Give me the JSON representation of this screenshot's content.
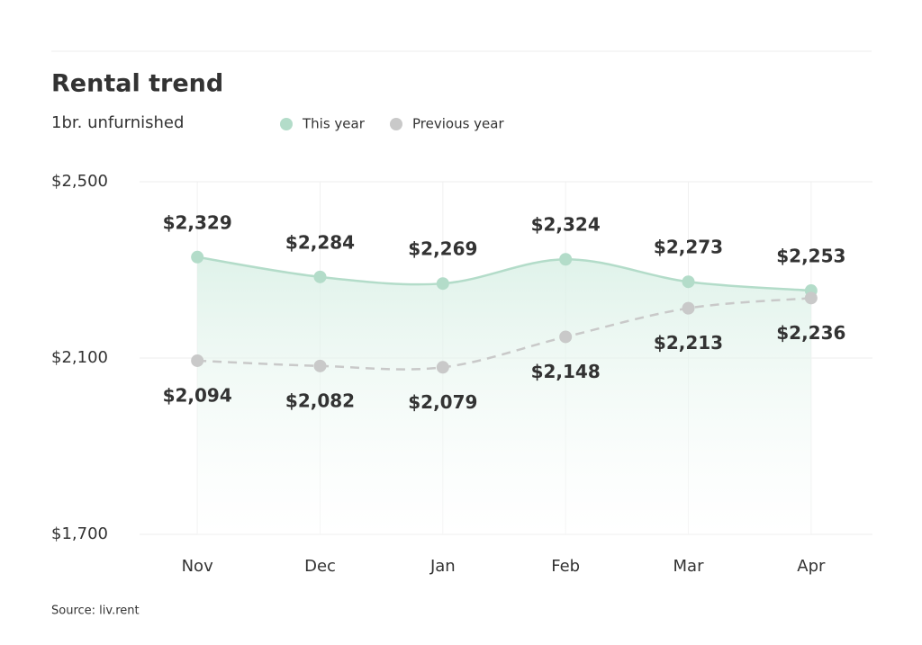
{
  "chart_data": {
    "type": "line",
    "title": "Rental trend",
    "subtitle": "1br. unfurnished",
    "source": "Source: liv.rent",
    "categories": [
      "Nov",
      "Dec",
      "Jan",
      "Feb",
      "Mar",
      "Apr"
    ],
    "series": [
      {
        "name": "This year",
        "color": "#b3dcc9",
        "line": "solid",
        "values": [
          2329,
          2284,
          2269,
          2324,
          2273,
          2253
        ],
        "value_labels": [
          "$2,329",
          "$2,284",
          "$2,269",
          "$2,324",
          "$2,273",
          "$2,253"
        ]
      },
      {
        "name": "Previous year",
        "color": "#c9c9c9",
        "line": "dashed",
        "values": [
          2094,
          2082,
          2079,
          2148,
          2213,
          2236
        ],
        "value_labels": [
          "$2,094",
          "$2,082",
          "$2,079",
          "$2,148",
          "$2,213",
          "$2,236"
        ]
      }
    ],
    "ylim": [
      1700,
      2500
    ],
    "yticks": [
      {
        "value": 1700,
        "label": "$1,700"
      },
      {
        "value": 2100,
        "label": "$2,100"
      },
      {
        "value": 2500,
        "label": "$2,500"
      }
    ],
    "grid": true
  }
}
